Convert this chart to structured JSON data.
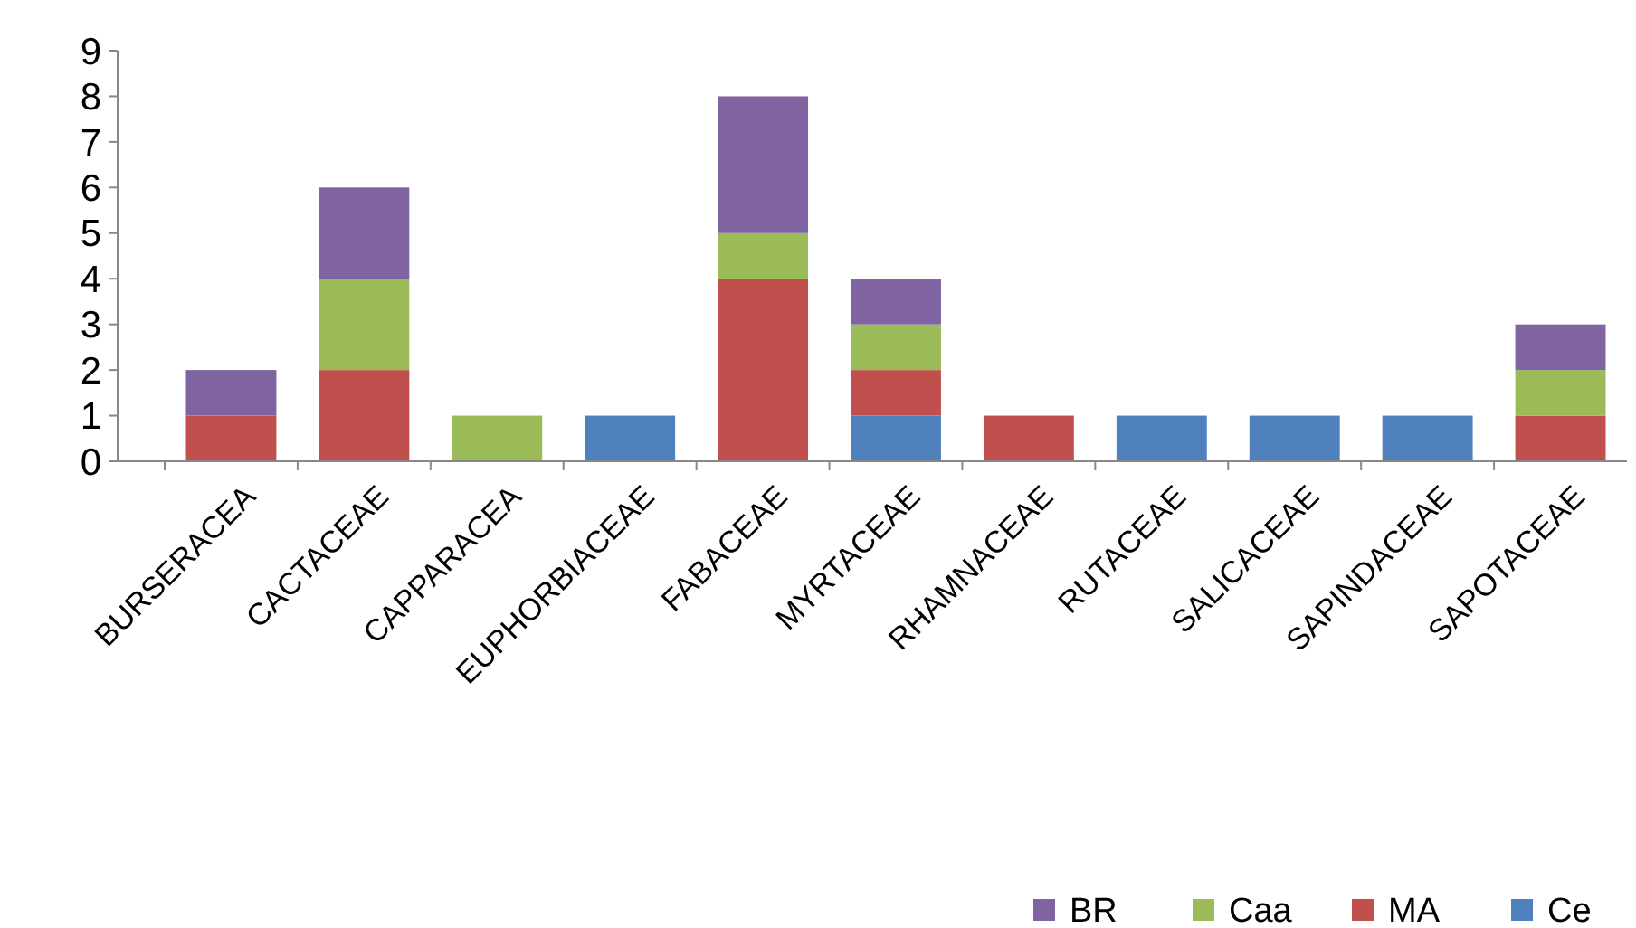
{
  "chart_data": {
    "type": "bar",
    "stacked": true,
    "categories": [
      "BURSERACEA",
      "CACTACEAE",
      "CAPPARACEA",
      "EUPHORBIACEAE",
      "FABACEAE",
      "MYRTACEAE",
      "RHAMNACEAE",
      "RUTACEAE",
      "SALICACEAE",
      "SAPINDACEAE",
      "SAPOTACEAE"
    ],
    "series": [
      {
        "name": "Ce",
        "color": "#4f81bd",
        "values": [
          0,
          0,
          0,
          1,
          0,
          1,
          0,
          1,
          1,
          1,
          0
        ]
      },
      {
        "name": "MA",
        "color": "#c0504d",
        "values": [
          1,
          2,
          0,
          0,
          4,
          1,
          1,
          0,
          0,
          0,
          1
        ]
      },
      {
        "name": "Caa",
        "color": "#9bbb59",
        "values": [
          0,
          2,
          1,
          0,
          1,
          1,
          0,
          0,
          0,
          0,
          1
        ]
      },
      {
        "name": "BR",
        "color": "#8064a2",
        "values": [
          1,
          2,
          0,
          0,
          3,
          1,
          0,
          0,
          0,
          0,
          1
        ]
      }
    ],
    "ylim": [
      0,
      9
    ],
    "yticks": [
      0,
      1,
      2,
      3,
      4,
      5,
      6,
      7,
      8,
      9
    ],
    "grid": false,
    "legend": "bottom right"
  }
}
